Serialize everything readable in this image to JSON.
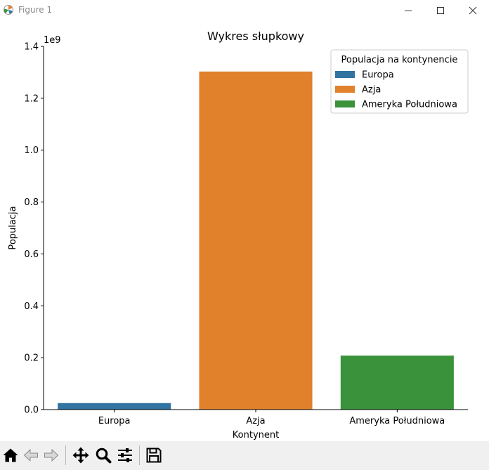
{
  "window": {
    "title": "Figure 1",
    "icons": [
      "matplotlib-icon",
      "minimize-icon",
      "maximize-icon",
      "close-icon"
    ]
  },
  "toolbar": {
    "buttons": [
      "home-icon",
      "back-icon",
      "forward-icon",
      "pan-icon",
      "zoom-icon",
      "configure-subplots-icon",
      "save-icon"
    ]
  },
  "chart_data": {
    "type": "bar",
    "title": "Wykres słupkowy",
    "xlabel": "Kontynent",
    "ylabel": "Populacja",
    "offset_text": "1e9",
    "categories": [
      "Europa",
      "Azja",
      "Ameryka Południowa"
    ],
    "values": [
      25000000,
      1303000000,
      208000000
    ],
    "colors": [
      "#3274a1",
      "#e1812c",
      "#3a923a"
    ],
    "ylim": [
      0,
      1400000000
    ],
    "yticks": [
      0,
      200000000,
      400000000,
      600000000,
      800000000,
      1000000000,
      1200000000,
      1400000000
    ],
    "ytick_labels": [
      "0.0",
      "0.2",
      "0.4",
      "0.6",
      "0.8",
      "1.0",
      "1.2",
      "1.4"
    ],
    "grid": false,
    "legend": {
      "title": "Populacja na kontynencie",
      "placement": "top-right",
      "entries": [
        "Europa",
        "Azja",
        "Ameryka Południowa"
      ]
    }
  }
}
